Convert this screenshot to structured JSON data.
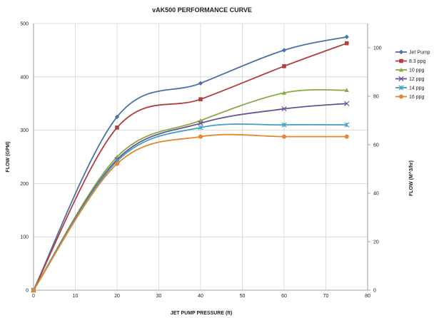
{
  "chart_data": {
    "type": "line",
    "title": "vAK500 PERFORMANCE CURVE",
    "xlabel": "JET PUMP PRESSURE (ft)",
    "ylabel": "FLOW (GPM)",
    "y2label": "FLOW (M^3/hr)",
    "xlim": [
      0,
      80
    ],
    "ylim": [
      0,
      500
    ],
    "y2lim": [
      0,
      110
    ],
    "x_ticks": [
      "0",
      "10",
      "20",
      "30",
      "40",
      "50",
      "60",
      "70",
      "80"
    ],
    "y_ticks": [
      "0",
      "100",
      "200",
      "300",
      "400",
      "500"
    ],
    "y2_ticks": [
      "0",
      "20",
      "40",
      "60",
      "80",
      "100"
    ],
    "grid": true,
    "legend_position": "right",
    "x": [
      0,
      20,
      40,
      60,
      75
    ],
    "series": [
      {
        "name": "Jet Pump",
        "color": "#4a72a8",
        "marker": "diamond",
        "values": [
          0,
          325,
          388,
          450,
          475
        ]
      },
      {
        "name": "8.3 ppg",
        "color": "#b0403c",
        "marker": "square",
        "values": [
          0,
          305,
          358,
          420,
          463
        ]
      },
      {
        "name": "10 ppg",
        "color": "#8aab48",
        "marker": "triangle",
        "values": [
          0,
          250,
          318,
          370,
          375
        ]
      },
      {
        "name": "12 ppg",
        "color": "#6c5294",
        "marker": "x",
        "values": [
          0,
          245,
          313,
          340,
          350
        ]
      },
      {
        "name": "14 ppg",
        "color": "#3ea2c0",
        "marker": "star",
        "values": [
          0,
          242,
          305,
          310,
          310
        ]
      },
      {
        "name": "16 ppg",
        "color": "#e38830",
        "marker": "circle",
        "values": [
          0,
          237,
          288,
          288,
          288
        ]
      }
    ]
  }
}
